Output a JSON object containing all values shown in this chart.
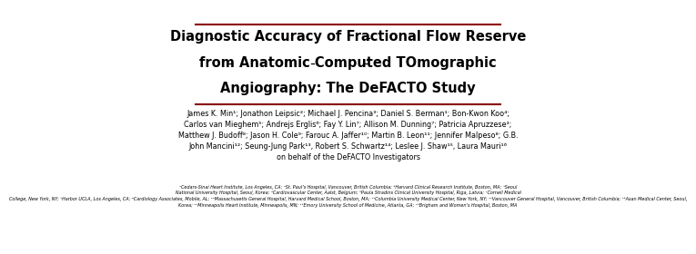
{
  "title_line1": "Diagnostic Accuracy of Fractional Flow Reserve",
  "title_line2": "from Anatomic Computed TOmographic",
  "title_line3": "Angiography: The DeFACTO Study",
  "authors_line1": "James K. Min¹; Jonathon Leipsic²; Michael J. Pencina³; Daniel S. Berman¹; Bon-Kwon Koo⁴;",
  "authors_line2": "Carlos van Mieghem⁵; Andrejs Erglis⁶; Fay Y. Lin⁷; Allison M. Dunning⁷; Patricia Apruzzese³;",
  "authors_line3": "Matthew J. Budoff⁸; Jason H. Cole⁹; Farouc A. Jaffer¹⁰; Martin B. Leon¹¹; Jennifer Malpeso⁸; G.B.",
  "authors_line4": "John Mancini¹²; Seung-Jung Park¹³, Robert S. Schwartz¹⁴; Leslee J. Shaw¹⁵, Laura Mauri¹⁶",
  "authors_line5": "on behalf of the DeFACTO Investigators",
  "affiliations": "¹Cedars-Sinai Heart Institute, Los Angeles, CA; ²St. Paul’s Hospital, Vancouver, British Columbia; ³Harvard Clinical Research Institute, Boston, MA; ⁴Seoul National University Hospital, Seoul, Korea; ⁵Cardiovascular Center, Aalst, Belgium; ⁶Paula Stradins Clinical University Hospital, Riga, Latvia; ⁷Cornell Medical College, New York, NY; ⁸Harbor UCLA, Los Angeles, CA; ⁹Cardiology Associates, Mobile, AL; ¹⁰Massachusetts General Hospital, Harvard Medical School, Boston, MA; ¹¹Columbia University Medical Center, New York, NY; ¹²Vancouver General Hospital, Vancouver, British Columbia; ¹³Asan Medical Center, Seoul, Korea; ¹⁴Minneapolis Heart Institute, Minneapolis, MN; ¹⁵Emory University School of Medicine, Atlanta, GA; ¹⁶Brigham and Women’s Hospital, Boston, MA",
  "background_color": "#ffffff",
  "title_color": "#000000",
  "text_color": "#000000",
  "line_color": "#8b0000"
}
